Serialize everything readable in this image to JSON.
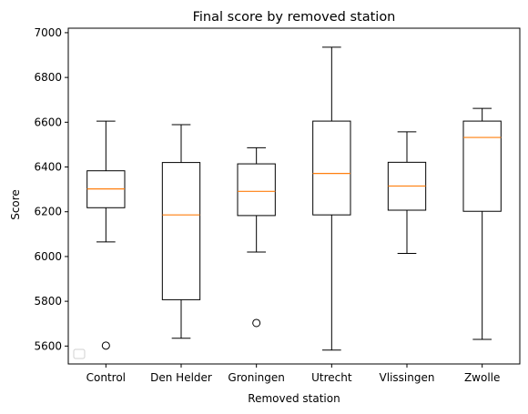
{
  "chart_data": {
    "type": "box",
    "title": "Final score by removed station",
    "xlabel": "Removed station",
    "ylabel": "Score",
    "ylim": [
      5520,
      7020
    ],
    "yticks": [
      5600,
      5800,
      6000,
      6200,
      6400,
      6600,
      6800,
      7000
    ],
    "categories": [
      "Control",
      "Den Helder",
      "Groningen",
      "Utrecht",
      "Vlissingen",
      "Zwolle"
    ],
    "boxes": [
      {
        "whisker_low": 6065,
        "q1": 6218,
        "median": 6302,
        "q3": 6383,
        "whisker_high": 6605,
        "outliers": [
          5602
        ]
      },
      {
        "whisker_low": 5635,
        "q1": 5807,
        "median": 6186,
        "q3": 6420,
        "whisker_high": 6589,
        "outliers": []
      },
      {
        "whisker_low": 6020,
        "q1": 6183,
        "median": 6291,
        "q3": 6414,
        "whisker_high": 6486,
        "outliers": [
          5703
        ]
      },
      {
        "whisker_low": 5582,
        "q1": 6186,
        "median": 6371,
        "q3": 6605,
        "whisker_high": 6935,
        "outliers": []
      },
      {
        "whisker_low": 6014,
        "q1": 6207,
        "median": 6315,
        "q3": 6421,
        "whisker_high": 6557,
        "outliers": []
      },
      {
        "whisker_low": 5630,
        "q1": 6202,
        "median": 6532,
        "q3": 6605,
        "whisker_high": 6662,
        "outliers": []
      }
    ],
    "colors": {
      "box": "#000000",
      "median": "#ff7f0e",
      "outlier": "#000000"
    },
    "grid": false,
    "legend": "bottom-left (empty)"
  }
}
